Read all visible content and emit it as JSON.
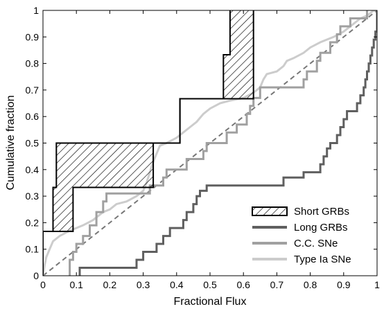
{
  "chart_data": {
    "type": "line",
    "xlabel": "Fractional Flux",
    "ylabel": "Cumulative fraction",
    "xlim": [
      0,
      1
    ],
    "ylim": [
      0,
      1
    ],
    "xticks": [
      "0",
      "0.1",
      "0.2",
      "0.3",
      "0.4",
      "0.5",
      "0.6",
      "0.7",
      "0.8",
      "0.9",
      "1"
    ],
    "yticks": [
      "0",
      "0.1",
      "0.2",
      "0.3",
      "0.4",
      "0.5",
      "0.6",
      "0.7",
      "0.8",
      "0.9",
      "1"
    ],
    "legend_position": "bottom-right",
    "grid": false,
    "reference_line": {
      "style": "dashed",
      "from": [
        0,
        0
      ],
      "to": [
        1,
        1
      ],
      "color": "#777777"
    },
    "series": [
      {
        "name": "Short GRBs",
        "style": "hatched-band",
        "color": "#000000",
        "lower": [
          [
            0.0,
            0.0
          ],
          [
            0.0,
            0.167
          ],
          [
            0.09,
            0.167
          ],
          [
            0.09,
            0.333
          ],
          [
            0.33,
            0.333
          ],
          [
            0.33,
            0.5
          ],
          [
            0.41,
            0.5
          ],
          [
            0.41,
            0.667
          ],
          [
            0.63,
            0.667
          ],
          [
            0.63,
            1.0
          ]
        ],
        "upper": [
          [
            0.0,
            0.0
          ],
          [
            0.0,
            0.167
          ],
          [
            0.03,
            0.167
          ],
          [
            0.03,
            0.333
          ],
          [
            0.04,
            0.333
          ],
          [
            0.04,
            0.5
          ],
          [
            0.41,
            0.5
          ],
          [
            0.41,
            0.667
          ],
          [
            0.54,
            0.667
          ],
          [
            0.54,
            0.833
          ],
          [
            0.56,
            0.833
          ],
          [
            0.56,
            1.0
          ]
        ]
      },
      {
        "name": "Long GRBs",
        "color": "#5f5f5f",
        "points": [
          [
            0.11,
            0.0
          ],
          [
            0.11,
            0.03
          ],
          [
            0.28,
            0.03
          ],
          [
            0.28,
            0.06
          ],
          [
            0.3,
            0.06
          ],
          [
            0.3,
            0.09
          ],
          [
            0.34,
            0.09
          ],
          [
            0.34,
            0.12
          ],
          [
            0.36,
            0.12
          ],
          [
            0.36,
            0.15
          ],
          [
            0.38,
            0.15
          ],
          [
            0.38,
            0.18
          ],
          [
            0.42,
            0.18
          ],
          [
            0.42,
            0.21
          ],
          [
            0.43,
            0.21
          ],
          [
            0.43,
            0.24
          ],
          [
            0.45,
            0.24
          ],
          [
            0.45,
            0.27
          ],
          [
            0.46,
            0.27
          ],
          [
            0.46,
            0.3
          ],
          [
            0.47,
            0.3
          ],
          [
            0.47,
            0.32
          ],
          [
            0.49,
            0.32
          ],
          [
            0.49,
            0.34
          ],
          [
            0.72,
            0.34
          ],
          [
            0.72,
            0.37
          ],
          [
            0.78,
            0.37
          ],
          [
            0.78,
            0.39
          ],
          [
            0.83,
            0.39
          ],
          [
            0.83,
            0.42
          ],
          [
            0.84,
            0.42
          ],
          [
            0.84,
            0.45
          ],
          [
            0.85,
            0.45
          ],
          [
            0.85,
            0.48
          ],
          [
            0.86,
            0.48
          ],
          [
            0.86,
            0.5
          ],
          [
            0.88,
            0.5
          ],
          [
            0.88,
            0.53
          ],
          [
            0.89,
            0.53
          ],
          [
            0.89,
            0.56
          ],
          [
            0.9,
            0.56
          ],
          [
            0.9,
            0.59
          ],
          [
            0.91,
            0.59
          ],
          [
            0.91,
            0.62
          ],
          [
            0.94,
            0.62
          ],
          [
            0.94,
            0.65
          ],
          [
            0.95,
            0.65
          ],
          [
            0.95,
            0.68
          ],
          [
            0.96,
            0.68
          ],
          [
            0.96,
            0.71
          ],
          [
            0.965,
            0.71
          ],
          [
            0.965,
            0.74
          ],
          [
            0.97,
            0.74
          ],
          [
            0.97,
            0.77
          ],
          [
            0.975,
            0.77
          ],
          [
            0.975,
            0.8
          ],
          [
            0.98,
            0.8
          ],
          [
            0.98,
            0.83
          ],
          [
            0.985,
            0.83
          ],
          [
            0.985,
            0.86
          ],
          [
            0.99,
            0.86
          ],
          [
            0.99,
            0.89
          ],
          [
            0.995,
            0.89
          ],
          [
            0.995,
            0.92
          ],
          [
            1.0,
            0.92
          ],
          [
            1.0,
            1.0
          ]
        ]
      },
      {
        "name": "C.C. SNe",
        "color": "#a0a0a0",
        "points": [
          [
            0.08,
            0.0
          ],
          [
            0.08,
            0.06
          ],
          [
            0.09,
            0.06
          ],
          [
            0.09,
            0.09
          ],
          [
            0.1,
            0.09
          ],
          [
            0.1,
            0.12
          ],
          [
            0.12,
            0.12
          ],
          [
            0.12,
            0.15
          ],
          [
            0.14,
            0.15
          ],
          [
            0.14,
            0.19
          ],
          [
            0.16,
            0.19
          ],
          [
            0.16,
            0.24
          ],
          [
            0.18,
            0.24
          ],
          [
            0.18,
            0.28
          ],
          [
            0.19,
            0.28
          ],
          [
            0.19,
            0.31
          ],
          [
            0.32,
            0.31
          ],
          [
            0.32,
            0.34
          ],
          [
            0.36,
            0.34
          ],
          [
            0.36,
            0.37
          ],
          [
            0.37,
            0.37
          ],
          [
            0.37,
            0.4
          ],
          [
            0.43,
            0.4
          ],
          [
            0.43,
            0.44
          ],
          [
            0.48,
            0.44
          ],
          [
            0.48,
            0.47
          ],
          [
            0.49,
            0.47
          ],
          [
            0.49,
            0.5
          ],
          [
            0.55,
            0.5
          ],
          [
            0.55,
            0.54
          ],
          [
            0.58,
            0.54
          ],
          [
            0.58,
            0.57
          ],
          [
            0.61,
            0.57
          ],
          [
            0.61,
            0.61
          ],
          [
            0.62,
            0.61
          ],
          [
            0.62,
            0.64
          ],
          [
            0.63,
            0.64
          ],
          [
            0.63,
            0.67
          ],
          [
            0.65,
            0.67
          ],
          [
            0.65,
            0.71
          ],
          [
            0.78,
            0.71
          ],
          [
            0.78,
            0.74
          ],
          [
            0.79,
            0.74
          ],
          [
            0.79,
            0.77
          ],
          [
            0.82,
            0.77
          ],
          [
            0.82,
            0.81
          ],
          [
            0.83,
            0.81
          ],
          [
            0.83,
            0.84
          ],
          [
            0.86,
            0.84
          ],
          [
            0.86,
            0.88
          ],
          [
            0.88,
            0.88
          ],
          [
            0.88,
            0.91
          ],
          [
            0.89,
            0.91
          ],
          [
            0.89,
            0.94
          ],
          [
            0.92,
            0.94
          ],
          [
            0.92,
            0.97
          ],
          [
            0.97,
            0.97
          ],
          [
            0.97,
            1.0
          ]
        ]
      },
      {
        "name": "Type Ia SNe",
        "color": "#cccccc",
        "points": [
          [
            0.0,
            0.0
          ],
          [
            0.005,
            0.04
          ],
          [
            0.01,
            0.07
          ],
          [
            0.02,
            0.1
          ],
          [
            0.03,
            0.13
          ],
          [
            0.05,
            0.15
          ],
          [
            0.08,
            0.17
          ],
          [
            0.1,
            0.18
          ],
          [
            0.12,
            0.19
          ],
          [
            0.15,
            0.21
          ],
          [
            0.18,
            0.24
          ],
          [
            0.2,
            0.25
          ],
          [
            0.22,
            0.27
          ],
          [
            0.25,
            0.28
          ],
          [
            0.28,
            0.3
          ],
          [
            0.3,
            0.32
          ],
          [
            0.31,
            0.35
          ],
          [
            0.32,
            0.39
          ],
          [
            0.33,
            0.43
          ],
          [
            0.34,
            0.46
          ],
          [
            0.35,
            0.49
          ],
          [
            0.37,
            0.5
          ],
          [
            0.4,
            0.52
          ],
          [
            0.42,
            0.54
          ],
          [
            0.44,
            0.56
          ],
          [
            0.46,
            0.58
          ],
          [
            0.48,
            0.61
          ],
          [
            0.5,
            0.63
          ],
          [
            0.53,
            0.65
          ],
          [
            0.56,
            0.66
          ],
          [
            0.6,
            0.67
          ],
          [
            0.63,
            0.69
          ],
          [
            0.65,
            0.71
          ],
          [
            0.66,
            0.74
          ],
          [
            0.67,
            0.76
          ],
          [
            0.7,
            0.77
          ],
          [
            0.72,
            0.79
          ],
          [
            0.73,
            0.81
          ],
          [
            0.75,
            0.82
          ],
          [
            0.78,
            0.84
          ],
          [
            0.8,
            0.86
          ],
          [
            0.83,
            0.88
          ],
          [
            0.87,
            0.9
          ],
          [
            0.9,
            0.92
          ],
          [
            0.93,
            0.95
          ],
          [
            0.95,
            0.97
          ],
          [
            0.97,
            0.98
          ],
          [
            0.99,
            1.0
          ],
          [
            1.0,
            1.0
          ]
        ]
      }
    ]
  }
}
